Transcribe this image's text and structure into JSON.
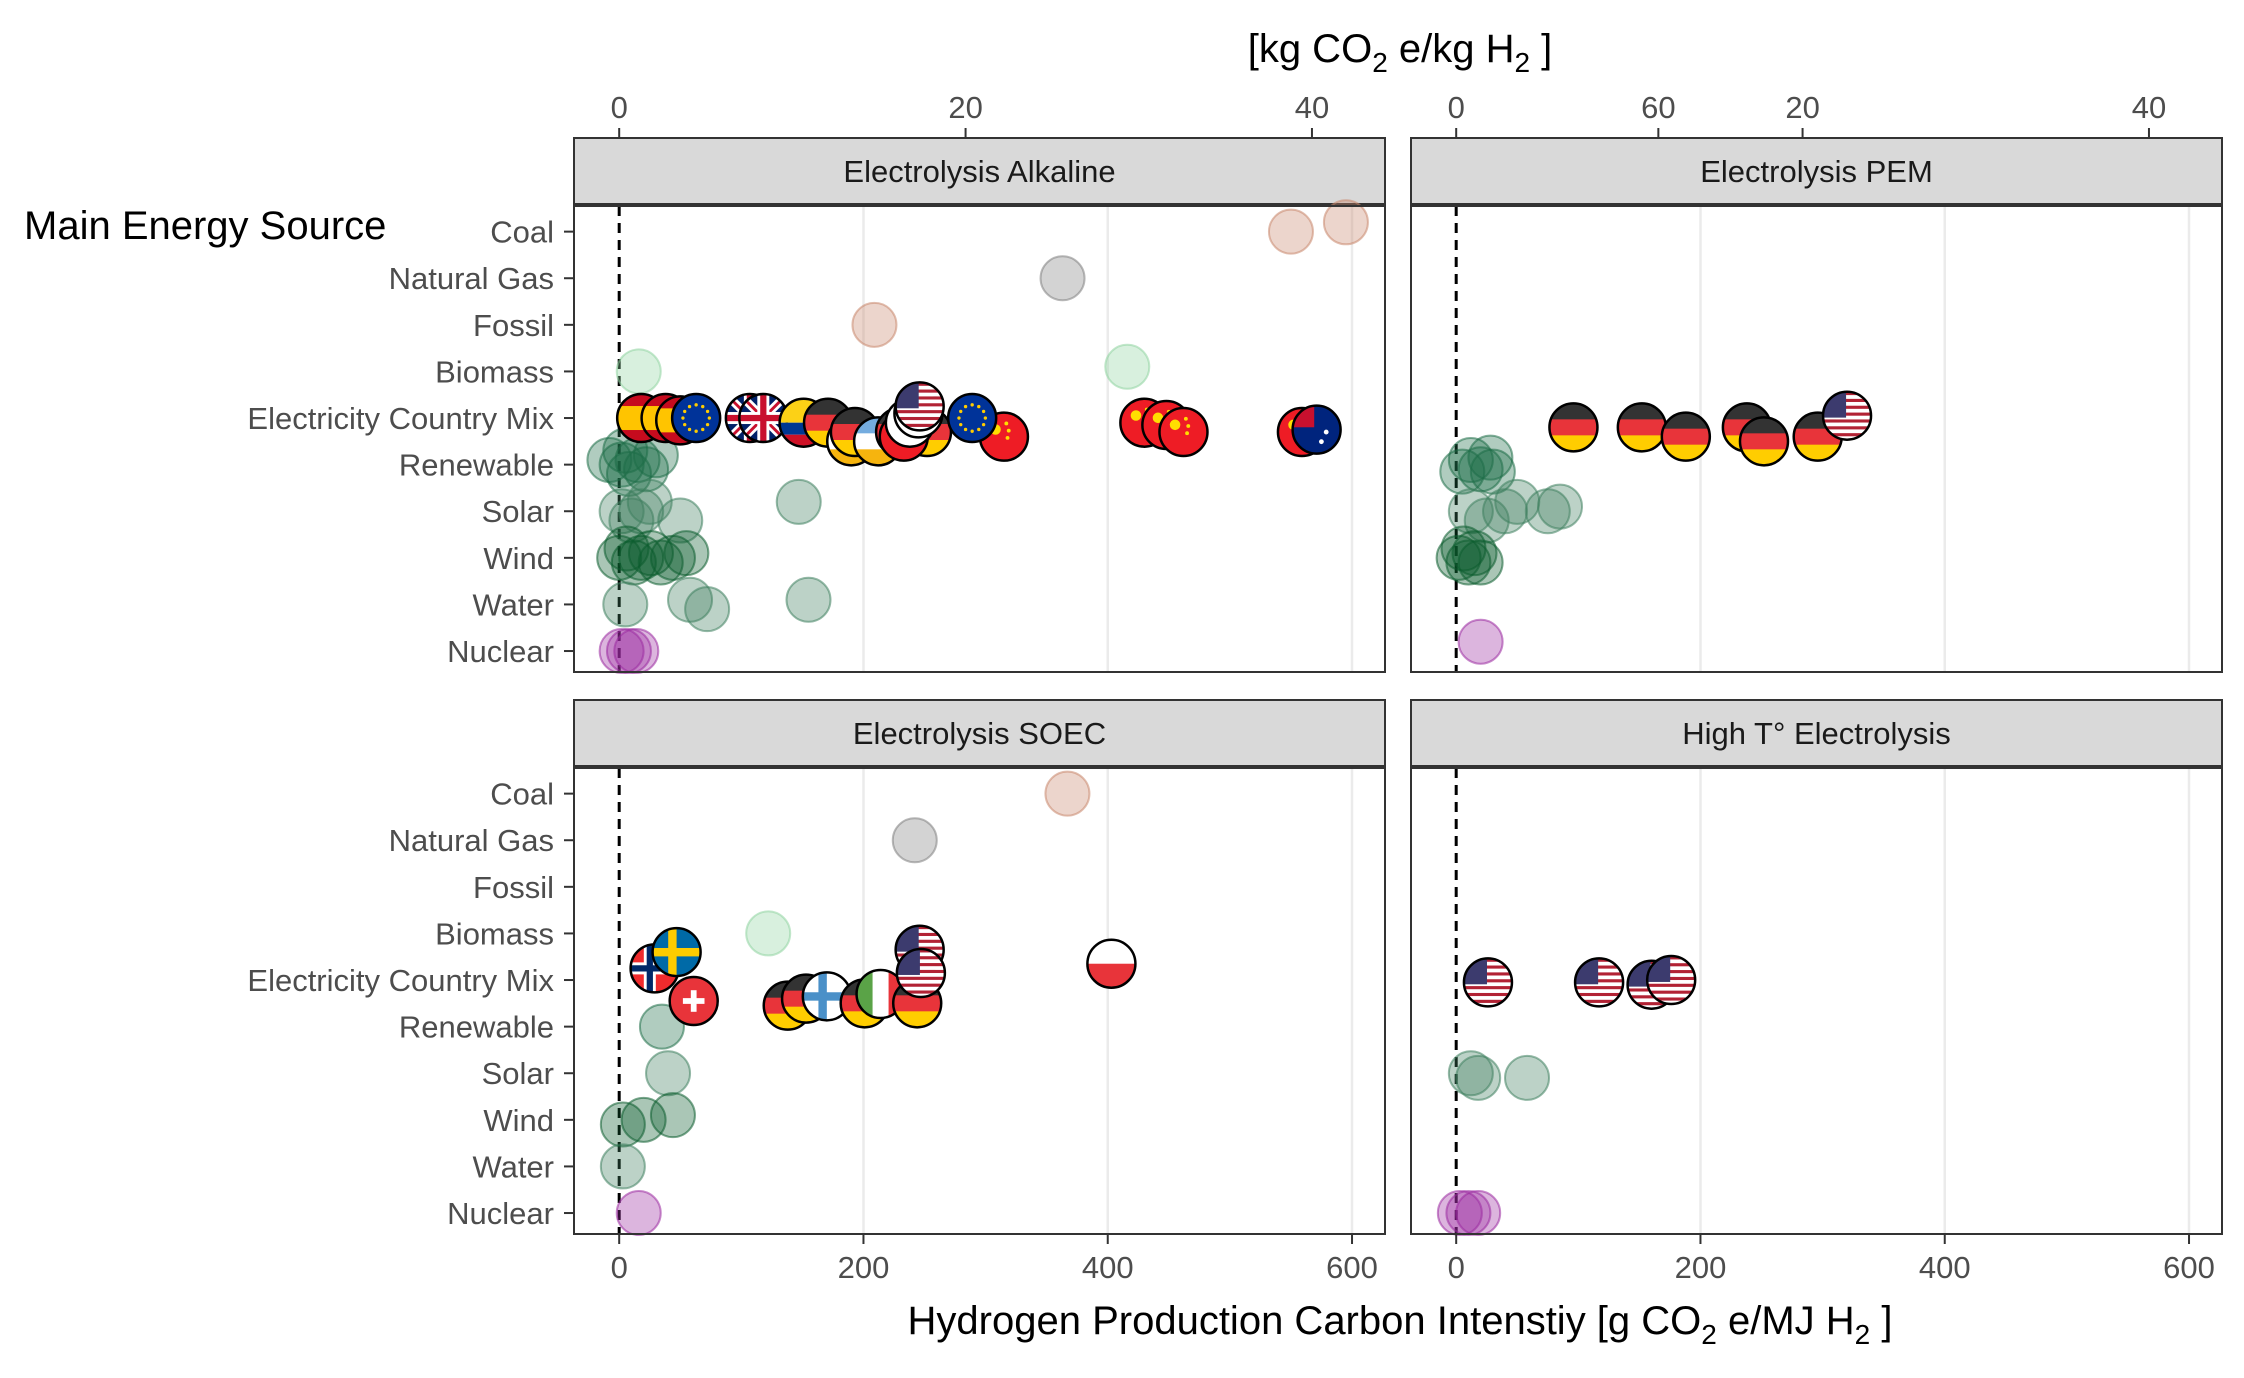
{
  "chart_data": {
    "type": "scatter",
    "title": "",
    "xlabel_bottom": {
      "pre": "Hydrogen Production Carbon Intenstiy [g CO",
      "sub1": "2",
      "mid": " e/MJ H",
      "sub2": "2",
      "post": " ]"
    },
    "xlabel_top": {
      "pre": "[kg CO",
      "sub1": "2",
      "mid": " e/kg H",
      "sub2": "2",
      "post": " ]"
    },
    "ylabel": "Main Energy Source",
    "xlim": [
      -37,
      627
    ],
    "bottom_ticks": [
      0,
      200,
      400,
      600
    ],
    "top_ticks": [
      0,
      20,
      40,
      60
    ],
    "top_scale_g_per_kg": 141.8,
    "categories": [
      "Coal",
      "Natural Gas",
      "Fossil",
      "Biomass",
      "Electricity Country Mix",
      "Renewable",
      "Solar",
      "Wind",
      "Water",
      "Nuclear"
    ],
    "category_colors": {
      "Coal": "#c8876c",
      "Natural Gas": "#808080",
      "Fossil": "#c8876c",
      "Biomass": "#8fd4a0",
      "Renewable": "#1d6e47",
      "Solar": "#3e7f5e",
      "Wind": "#0b5c2e",
      "Water": "#3e7f5e",
      "Nuclear": "#9b2aa0"
    },
    "flag_colors": {
      "ES": [
        "#c60b1e",
        "#ffc400",
        "#c60b1e"
      ],
      "EU": [
        "#003399"
      ],
      "UK": [
        "#012169"
      ],
      "CO": [
        "#fcd116",
        "#003893",
        "#ce1126"
      ],
      "DE": [
        "#333333",
        "#e8343a",
        "#ffcd00"
      ],
      "US": [
        "#b22234",
        "#ffffff",
        "#3c3b6e"
      ],
      "CN": [
        "#ee1c25",
        "#ffde00"
      ],
      "AR": [
        "#74acdf",
        "#ffffff",
        "#f6b40e"
      ],
      "KR": [
        "#ffffff",
        "#cd2e3a",
        "#0047a0"
      ],
      "AU": [
        "#00247d",
        "#e8343a"
      ],
      "SE": [
        "#006aa7",
        "#fecc00"
      ],
      "NO": [
        "#ef2b2d",
        "#ffffff",
        "#002868"
      ],
      "CH": [
        "#e8343a",
        "#ffffff"
      ],
      "FI": [
        "#ffffff",
        "#4a90c8"
      ],
      "IT": [
        "#5aa347",
        "#ffffff",
        "#e8343a"
      ],
      "PL": [
        "#ffffff",
        "#e8343a"
      ]
    },
    "panels": [
      {
        "title": "Electrolysis Alkaline",
        "points": [
          {
            "cat": "Coal",
            "x": 550
          },
          {
            "cat": "Coal",
            "x": 595,
            "dy": 0.2
          },
          {
            "cat": "Natural Gas",
            "x": 363
          },
          {
            "cat": "Fossil",
            "x": 209
          },
          {
            "cat": "Biomass",
            "x": 16
          },
          {
            "cat": "Biomass",
            "x": 416,
            "dy": 0.1
          },
          {
            "cat": "Renewable",
            "x": -8,
            "dy": 0.1
          },
          {
            "cat": "Renewable",
            "x": 2
          },
          {
            "cat": "Renewable",
            "x": 8,
            "dy": -0.2
          },
          {
            "cat": "Renewable",
            "x": 15,
            "dy": 0.1
          },
          {
            "cat": "Renewable",
            "x": 22,
            "dy": -0.1
          },
          {
            "cat": "Renewable",
            "x": 30,
            "dy": 0.2
          },
          {
            "cat": "Renewable",
            "x": 5,
            "dy": 0.3
          },
          {
            "cat": "Solar",
            "x": 2
          },
          {
            "cat": "Solar",
            "x": 10,
            "dy": -0.2
          },
          {
            "cat": "Solar",
            "x": 18
          },
          {
            "cat": "Solar",
            "x": 25,
            "dy": 0.2
          },
          {
            "cat": "Solar",
            "x": 50,
            "dy": -0.2
          },
          {
            "cat": "Solar",
            "x": 147,
            "dy": 0.2
          },
          {
            "cat": "Wind",
            "x": 0
          },
          {
            "cat": "Wind",
            "x": 6,
            "dy": 0.2
          },
          {
            "cat": "Wind",
            "x": 12,
            "dy": -0.1
          },
          {
            "cat": "Wind",
            "x": 18
          },
          {
            "cat": "Wind",
            "x": 26,
            "dy": 0.1
          },
          {
            "cat": "Wind",
            "x": 34,
            "dy": -0.1
          },
          {
            "cat": "Wind",
            "x": 44
          },
          {
            "cat": "Wind",
            "x": 55,
            "dy": 0.1
          },
          {
            "cat": "Water",
            "x": 5
          },
          {
            "cat": "Water",
            "x": 58,
            "dy": 0.1
          },
          {
            "cat": "Water",
            "x": 72,
            "dy": -0.1
          },
          {
            "cat": "Water",
            "x": 155,
            "dy": 0.1
          },
          {
            "cat": "Nuclear",
            "x": 2
          },
          {
            "cat": "Nuclear",
            "x": 8
          },
          {
            "cat": "Nuclear",
            "x": 14
          }
        ],
        "flags": [
          {
            "code": "ES",
            "x": 18,
            "dy": 0
          },
          {
            "code": "ES",
            "x": 38,
            "dy": 0
          },
          {
            "code": "ES",
            "x": 50,
            "dy": -0.05
          },
          {
            "code": "EU",
            "x": 63,
            "dy": 0
          },
          {
            "code": "UK",
            "x": 107,
            "dy": 0
          },
          {
            "code": "UK",
            "x": 118,
            "dy": 0
          },
          {
            "code": "CO",
            "x": 151,
            "dy": -0.1
          },
          {
            "code": "DE",
            "x": 171,
            "dy": -0.1
          },
          {
            "code": "AR",
            "x": 190,
            "dy": -0.5
          },
          {
            "code": "DE",
            "x": 193,
            "dy": -0.3
          },
          {
            "code": "AR",
            "x": 212,
            "dy": -0.5
          },
          {
            "code": "DE",
            "x": 230,
            "dy": -0.3
          },
          {
            "code": "DE",
            "x": 252,
            "dy": -0.3
          },
          {
            "code": "CN",
            "x": 233,
            "dy": -0.4
          },
          {
            "code": "CN",
            "x": 315,
            "dy": -0.4
          },
          {
            "code": "KR",
            "x": 238,
            "dy": -0.1
          },
          {
            "code": "KR",
            "x": 245,
            "dy": 0.1
          },
          {
            "code": "US",
            "x": 246,
            "dy": 0.25
          },
          {
            "code": "EU",
            "x": 289,
            "dy": 0
          },
          {
            "code": "CN",
            "x": 430,
            "dy": -0.1
          },
          {
            "code": "CN",
            "x": 448,
            "dy": -0.15
          },
          {
            "code": "CN",
            "x": 462,
            "dy": -0.3
          },
          {
            "code": "CN",
            "x": 559,
            "dy": -0.3
          },
          {
            "code": "AU",
            "x": 571,
            "dy": -0.25
          }
        ]
      },
      {
        "title": "Electrolysis PEM",
        "points": [
          {
            "cat": "Renewable",
            "x": 5,
            "dy": -0.15
          },
          {
            "cat": "Renewable",
            "x": 12,
            "dy": 0.1
          },
          {
            "cat": "Renewable",
            "x": 20,
            "dy": -0.1
          },
          {
            "cat": "Renewable",
            "x": 28,
            "dy": 0.15
          },
          {
            "cat": "Renewable",
            "x": 30,
            "dy": -0.15
          },
          {
            "cat": "Solar",
            "x": 12
          },
          {
            "cat": "Solar",
            "x": 25,
            "dy": -0.2
          },
          {
            "cat": "Solar",
            "x": 40
          },
          {
            "cat": "Solar",
            "x": 50,
            "dy": 0.2
          },
          {
            "cat": "Solar",
            "x": 75
          },
          {
            "cat": "Solar",
            "x": 85,
            "dy": 0.1
          },
          {
            "cat": "Wind",
            "x": 2
          },
          {
            "cat": "Wind",
            "x": 6,
            "dy": 0.2
          },
          {
            "cat": "Wind",
            "x": 10,
            "dy": -0.1
          },
          {
            "cat": "Wind",
            "x": 15,
            "dy": 0.1
          },
          {
            "cat": "Wind",
            "x": 20,
            "dy": -0.1
          },
          {
            "cat": "Nuclear",
            "x": 20,
            "dy": 0.2
          }
        ],
        "flags": [
          {
            "code": "DE",
            "x": 96,
            "dy": -0.2
          },
          {
            "code": "DE",
            "x": 152,
            "dy": -0.2
          },
          {
            "code": "DE",
            "x": 188,
            "dy": -0.4
          },
          {
            "code": "DE",
            "x": 238,
            "dy": -0.2
          },
          {
            "code": "DE",
            "x": 252,
            "dy": -0.5
          },
          {
            "code": "DE",
            "x": 296,
            "dy": -0.4
          },
          {
            "code": "US",
            "x": 320,
            "dy": 0.05
          }
        ]
      },
      {
        "title": "Electrolysis SOEC",
        "points": [
          {
            "cat": "Coal",
            "x": 367
          },
          {
            "cat": "Natural Gas",
            "x": 242
          },
          {
            "cat": "Biomass",
            "x": 122
          },
          {
            "cat": "Renewable",
            "x": 35
          },
          {
            "cat": "Solar",
            "x": 40
          },
          {
            "cat": "Wind",
            "x": 3,
            "dy": -0.1
          },
          {
            "cat": "Wind",
            "x": 20
          },
          {
            "cat": "Wind",
            "x": 44,
            "dy": 0.1
          },
          {
            "cat": "Water",
            "x": 3
          },
          {
            "cat": "Nuclear",
            "x": 16
          }
        ],
        "flags": [
          {
            "code": "NO",
            "x": 29,
            "dy": 0.25
          },
          {
            "code": "SE",
            "x": 47,
            "dy": 0.6
          },
          {
            "code": "CH",
            "x": 61,
            "dy": -0.45
          },
          {
            "code": "DE",
            "x": 138,
            "dy": -0.55
          },
          {
            "code": "DE",
            "x": 153,
            "dy": -0.4
          },
          {
            "code": "FI",
            "x": 170,
            "dy": -0.35
          },
          {
            "code": "DE",
            "x": 201,
            "dy": -0.5
          },
          {
            "code": "IT",
            "x": 214,
            "dy": -0.3
          },
          {
            "code": "DE",
            "x": 244,
            "dy": -0.5
          },
          {
            "code": "US",
            "x": 246,
            "dy": 0.65
          },
          {
            "code": "US",
            "x": 247,
            "dy": 0.15
          },
          {
            "code": "PL",
            "x": 403,
            "dy": 0.35
          }
        ]
      },
      {
        "title": "High T° Electrolysis",
        "points": [
          {
            "cat": "Solar",
            "x": 12
          },
          {
            "cat": "Solar",
            "x": 18,
            "dy": -0.1
          },
          {
            "cat": "Solar",
            "x": 58,
            "dy": -0.1
          },
          {
            "cat": "Nuclear",
            "x": 3
          },
          {
            "cat": "Nuclear",
            "x": 10
          },
          {
            "cat": "Nuclear",
            "x": 18
          }
        ],
        "flags": [
          {
            "code": "US",
            "x": 26,
            "dy": -0.05
          },
          {
            "code": "US",
            "x": 117,
            "dy": -0.05
          },
          {
            "code": "US",
            "x": 160,
            "dy": -0.1
          },
          {
            "code": "US",
            "x": 176,
            "dy": 0
          }
        ]
      }
    ]
  }
}
